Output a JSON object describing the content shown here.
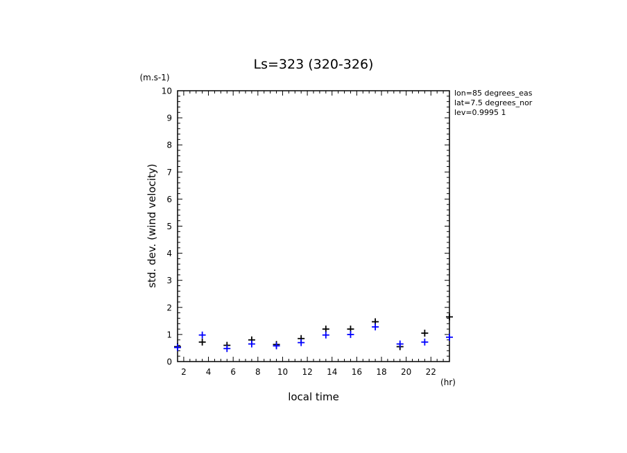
{
  "chart_data": {
    "type": "scatter",
    "title": "Ls=323 (320-326)",
    "ylabel": "std. dev. (wind velocity)",
    "yunit": "(m.s-1)",
    "xlabel": "local time",
    "xunit": "(hr)",
    "xlim": [
      1.5,
      23.5
    ],
    "ylim": [
      0,
      10
    ],
    "xticks": [
      2,
      4,
      6,
      8,
      10,
      12,
      14,
      16,
      18,
      20,
      22
    ],
    "yticks": [
      0,
      1,
      2,
      3,
      4,
      5,
      6,
      7,
      8,
      9,
      10
    ],
    "grid": false,
    "info": [
      "lon=85 degrees_eas",
      "lat=7.5 degrees_nor",
      "lev=0.9995 1"
    ],
    "series": [
      {
        "color": "#000000",
        "marker": "plus",
        "x": [
          1.5,
          3.5,
          5.5,
          7.5,
          9.5,
          11.5,
          13.5,
          15.5,
          17.5,
          19.5,
          21.5,
          23.5
        ],
        "y": [
          0.55,
          0.72,
          0.6,
          0.8,
          0.63,
          0.85,
          1.2,
          1.2,
          1.47,
          0.55,
          1.05,
          1.65
        ]
      },
      {
        "color": "#0000ff",
        "marker": "plus",
        "x": [
          1.5,
          3.5,
          5.5,
          7.5,
          9.5,
          11.5,
          13.5,
          15.5,
          17.5,
          19.5,
          21.5,
          23.5
        ],
        "y": [
          0.52,
          0.98,
          0.48,
          0.65,
          0.58,
          0.7,
          0.98,
          1.0,
          1.28,
          0.65,
          0.72,
          0.9
        ]
      }
    ]
  }
}
